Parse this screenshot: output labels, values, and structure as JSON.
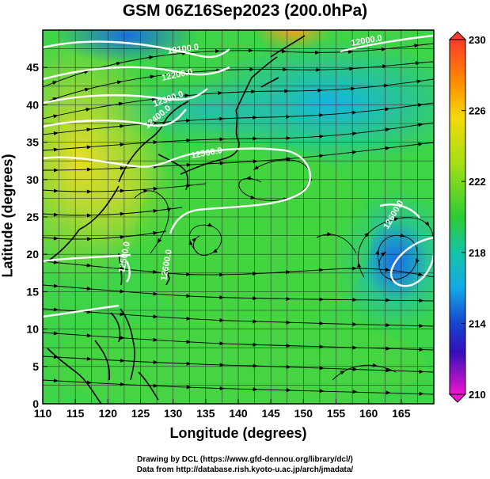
{
  "title": "GSM 06Z16Sep2023 (200.0hPa)",
  "axes": {
    "xlabel": "Longitude (degrees)",
    "ylabel": "Latitude  (degrees)",
    "xticks": [
      "110",
      "115",
      "120",
      "125",
      "130",
      "135",
      "140",
      "145",
      "150",
      "155",
      "160",
      "165"
    ],
    "yticks": [
      "0",
      "5",
      "10",
      "15",
      "20",
      "25",
      "30",
      "35",
      "40",
      "45"
    ]
  },
  "colorbar": {
    "labels": [
      "230",
      "226",
      "222",
      "218",
      "214",
      "210"
    ]
  },
  "contour_labels": [
    "12100.0",
    "12200.0",
    "12300.0",
    "12400.0",
    "12500.0",
    "12500.0",
    "12600.0",
    "12600.0",
    "12000.0"
  ],
  "credits": {
    "line1": "Drawing by DCL (https://www.gfd-dennou.org/library/dcl/)",
    "line2": "Data from http://database.rish.kyoto-u.ac.jp/arch/jmadata/"
  }
}
